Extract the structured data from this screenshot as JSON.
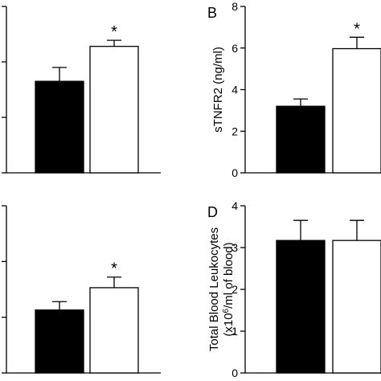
{
  "chart_data": [
    {
      "panel": "A",
      "type": "bar",
      "letter": "",
      "ylabel": "",
      "ylim": [
        0,
        3
      ],
      "yticks": [
        0,
        1,
        2,
        3
      ],
      "show_tick_labels": false,
      "series": [
        {
          "name": "",
          "color": "#000000",
          "values": [
            1.65
          ],
          "error": [
            0.25
          ]
        },
        {
          "name": "",
          "color": "#ffffff",
          "values": [
            2.28
          ],
          "error": [
            0.11
          ]
        }
      ],
      "annotations": [
        {
          "bar": 1,
          "text": "*"
        }
      ]
    },
    {
      "panel": "B",
      "type": "bar",
      "letter": "B",
      "ylabel": "sTNFR2 (ng/ml)",
      "ylim": [
        0,
        8
      ],
      "yticks": [
        0,
        2,
        4,
        6,
        8
      ],
      "show_tick_labels": true,
      "tick_labels": [
        "0",
        "2",
        "4",
        "6",
        "8"
      ],
      "series": [
        {
          "name": "",
          "color": "#000000",
          "values": [
            3.2
          ],
          "error": [
            0.35
          ]
        },
        {
          "name": "",
          "color": "#ffffff",
          "values": [
            5.97
          ],
          "error": [
            0.55
          ]
        }
      ],
      "annotations": [
        {
          "bar": 1,
          "text": "*"
        }
      ]
    },
    {
      "panel": "C",
      "type": "bar",
      "letter": "",
      "ylabel": "",
      "ylim": [
        0,
        3
      ],
      "yticks": [
        0,
        1,
        2,
        3
      ],
      "show_tick_labels": false,
      "series": [
        {
          "name": "",
          "color": "#000000",
          "values": [
            1.13
          ],
          "error": [
            0.15
          ]
        },
        {
          "name": "",
          "color": "#ffffff",
          "values": [
            1.53
          ],
          "error": [
            0.19
          ]
        }
      ],
      "annotations": [
        {
          "bar": 1,
          "text": "*"
        }
      ]
    },
    {
      "panel": "D",
      "type": "bar",
      "letter": "D",
      "ylabel": "Total Blood Leukocytes",
      "ylabel_line2_prefix": "(x10",
      "ylabel_line2_sup": "6",
      "ylabel_line2_suffix": "/ml of blood)",
      "ylim": [
        0,
        4
      ],
      "yticks": [
        0,
        1,
        2,
        3,
        4
      ],
      "show_tick_labels": true,
      "tick_labels": [
        "0",
        "1",
        "2",
        "3",
        "4"
      ],
      "series": [
        {
          "name": "",
          "color": "#000000",
          "values": [
            3.17
          ],
          "error": [
            0.48
          ]
        },
        {
          "name": "",
          "color": "#ffffff",
          "values": [
            3.17
          ],
          "error": [
            0.48
          ]
        }
      ],
      "annotations": []
    }
  ]
}
